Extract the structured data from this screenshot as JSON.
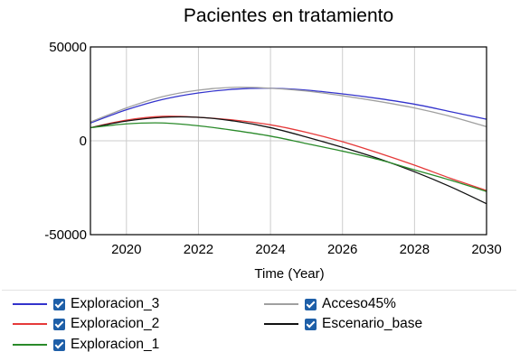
{
  "chart_data": {
    "type": "line",
    "title": "Pacientes en tratamiento",
    "xlabel": "Time (Year)",
    "ylabel": "",
    "xlim": [
      2019,
      2030
    ],
    "ylim": [
      -50000,
      50000
    ],
    "x_ticks": [
      "2020",
      "2022",
      "2024",
      "2026",
      "2028",
      "2030"
    ],
    "y_ticks": [
      "50000",
      "0",
      "-50000"
    ],
    "grid": true,
    "legend_position": "bottom",
    "x": [
      2019,
      2020,
      2021,
      2022,
      2023,
      2024,
      2025,
      2026,
      2027,
      2028,
      2029,
      2030
    ],
    "series": [
      {
        "name": "Exploracion_3",
        "color": "#3333cc",
        "values": [
          9500,
          16500,
          22000,
          25500,
          27500,
          28000,
          27000,
          25000,
          22500,
          19500,
          15500,
          11500
        ]
      },
      {
        "name": "Acceso45%",
        "color": "#a0a0a0",
        "values": [
          10000,
          17500,
          23500,
          27000,
          28500,
          28000,
          26500,
          24000,
          21000,
          17500,
          13000,
          7500
        ]
      },
      {
        "name": "Exploracion_2",
        "color": "#e53939",
        "values": [
          7000,
          11000,
          13000,
          12500,
          11000,
          8500,
          4500,
          -500,
          -6500,
          -13000,
          -20000,
          -26500
        ]
      },
      {
        "name": "Escenario_base",
        "color": "#111111",
        "values": [
          7000,
          10500,
          12500,
          12500,
          10500,
          7000,
          2000,
          -3500,
          -9500,
          -16500,
          -24500,
          -33500
        ]
      },
      {
        "name": "Exploracion_1",
        "color": "#2a8a2a",
        "values": [
          7000,
          9000,
          9500,
          8000,
          5500,
          2500,
          -1500,
          -5500,
          -10000,
          -15500,
          -21000,
          -27000
        ]
      }
    ]
  },
  "legend": [
    {
      "label": "Exploracion_3",
      "color": "#3333cc"
    },
    {
      "label": "Acceso45%",
      "color": "#a0a0a0"
    },
    {
      "label": "Exploracion_2",
      "color": "#e53939"
    },
    {
      "label": "Escenario_base",
      "color": "#111111"
    },
    {
      "label": "Exploracion_1",
      "color": "#2a8a2a"
    }
  ]
}
